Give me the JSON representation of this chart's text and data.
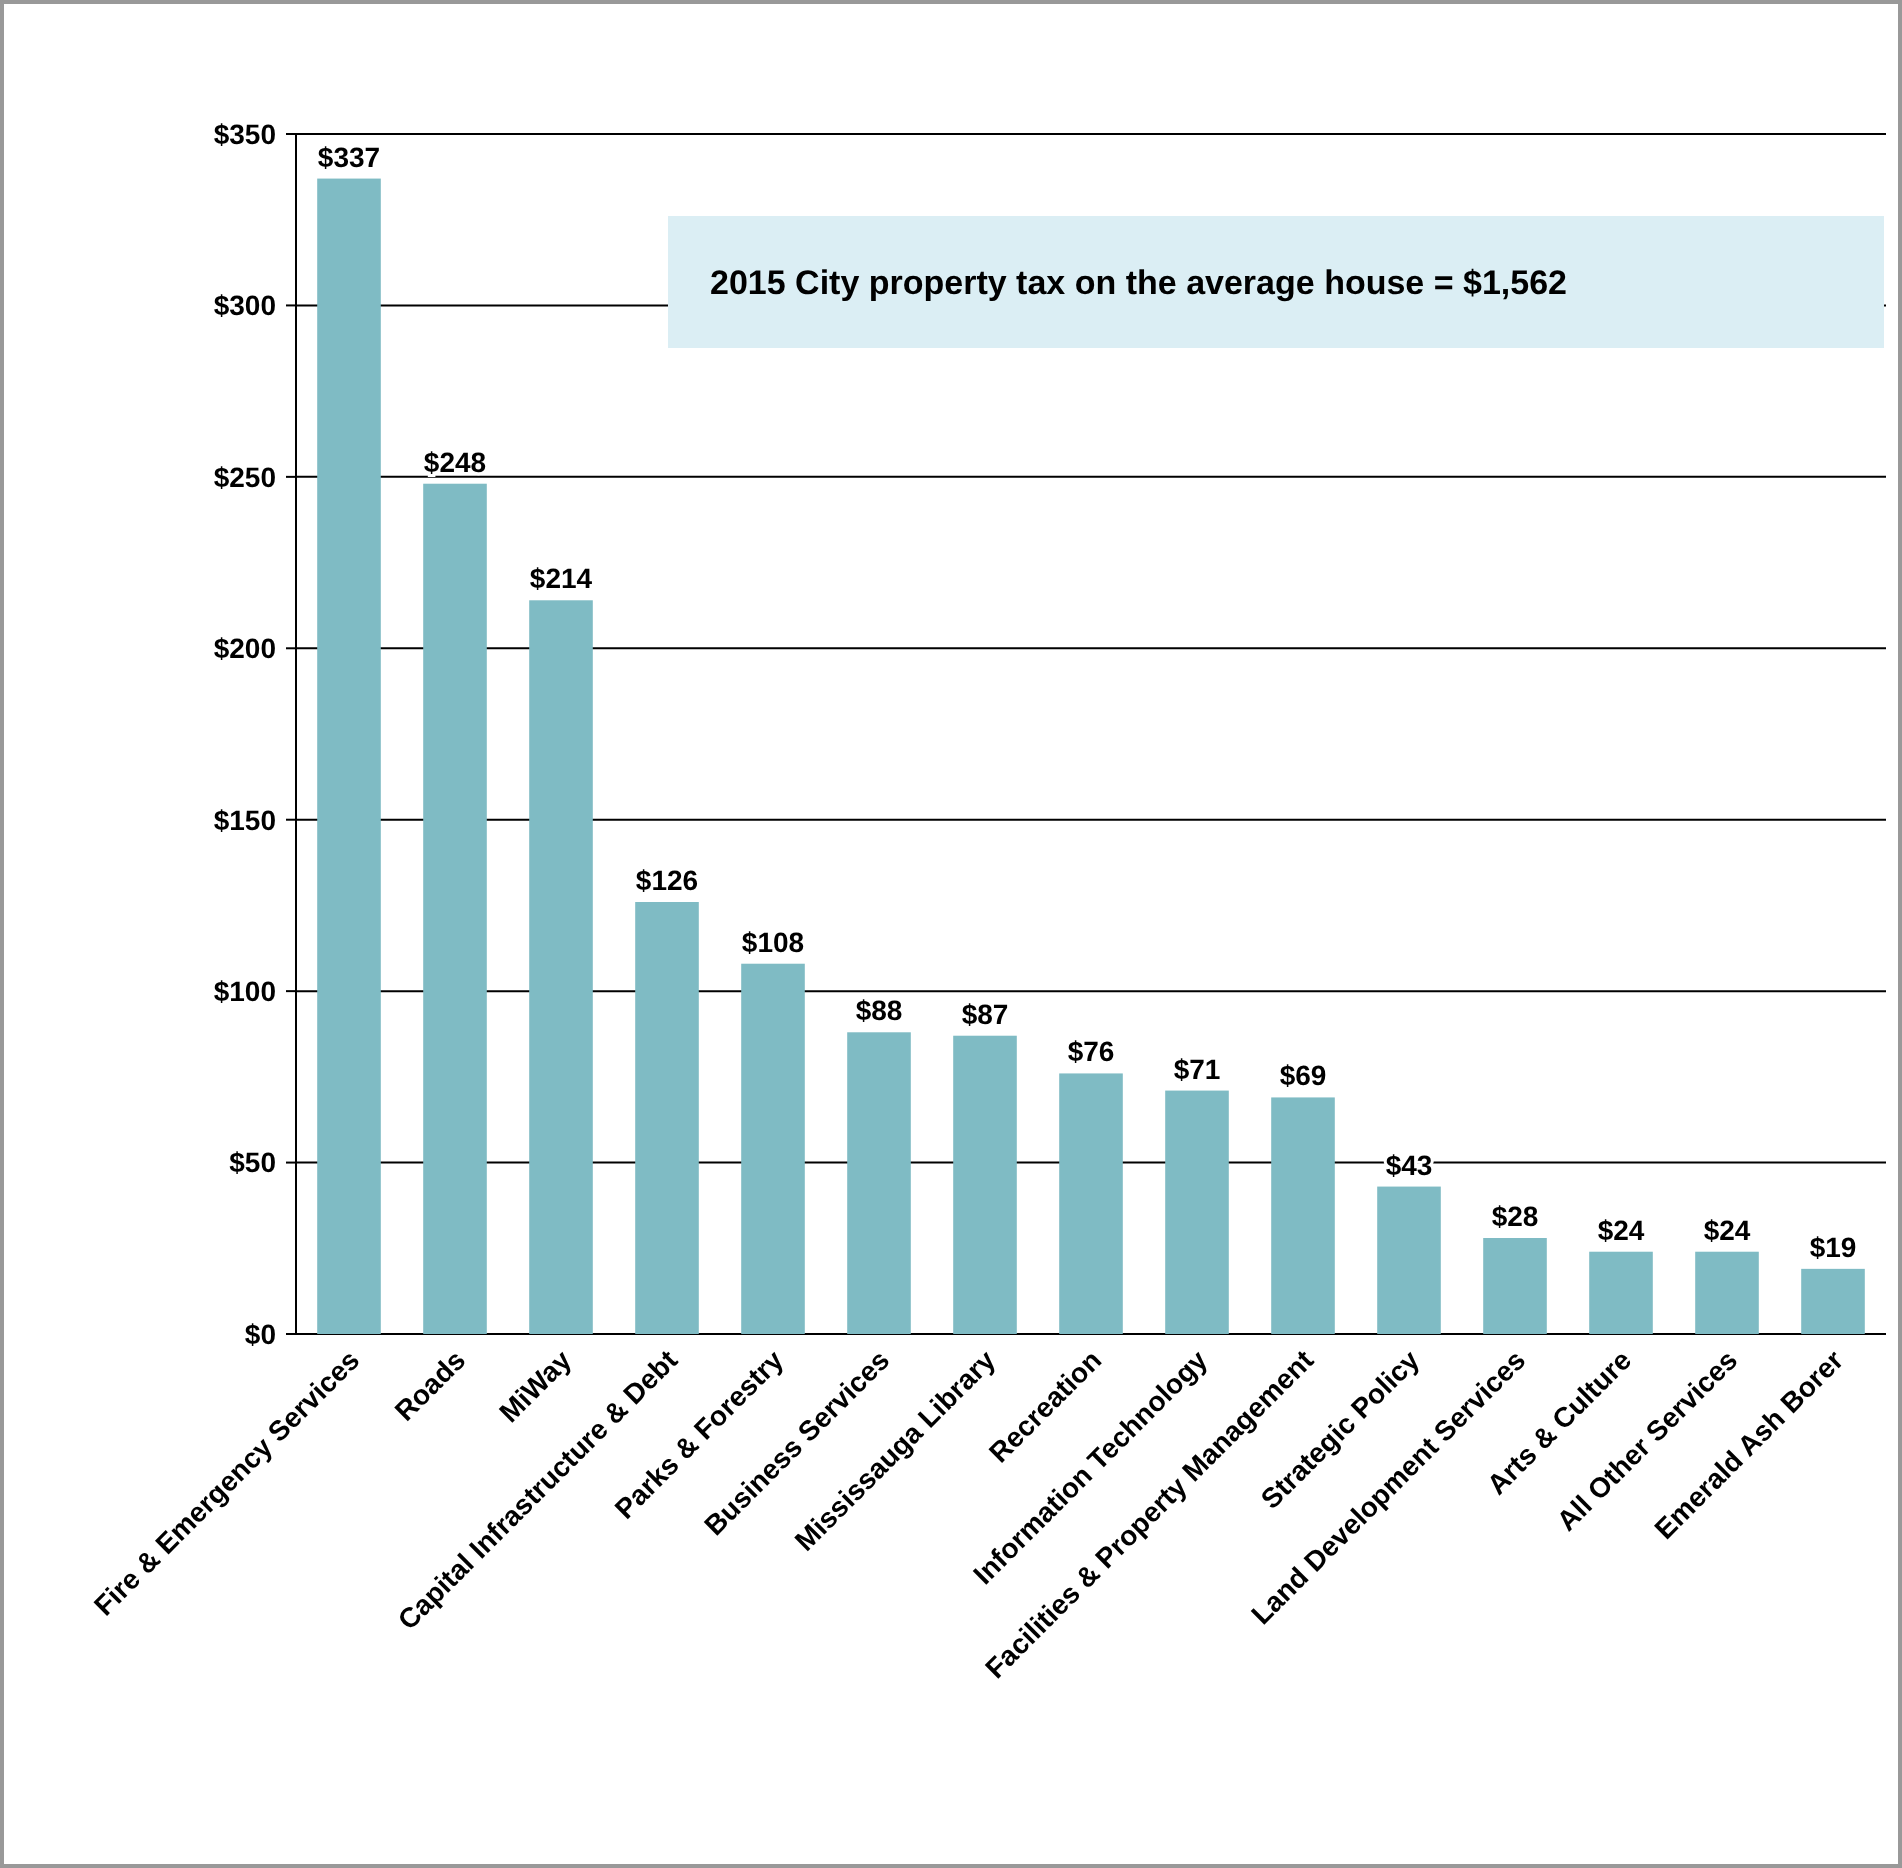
{
  "chart_data": {
    "type": "bar",
    "categories": [
      "Fire & Emergency Services",
      "Roads",
      "MiWay",
      "Capital Infrastructure & Debt",
      "Parks & Forestry",
      "Business Services",
      "Mississauga Library",
      "Recreation",
      "Information Technology",
      "Facilities & Property Management",
      "Strategic Policy",
      "Land Development Services",
      "Arts & Culture",
      "All Other Services",
      "Emerald Ash Borer"
    ],
    "values": [
      337,
      248,
      214,
      126,
      108,
      88,
      87,
      76,
      71,
      69,
      43,
      28,
      24,
      24,
      19
    ],
    "value_labels": [
      "$337",
      "$248",
      "$214",
      "$126",
      "$108",
      "$88",
      "$87",
      "$76",
      "$71",
      "$69",
      "$43",
      "$28",
      "$24",
      "$24",
      "$19"
    ],
    "color": "#7fbbc4",
    "ylim": [
      0,
      350
    ],
    "yticks": [
      {
        "value": 0,
        "label": "$0"
      },
      {
        "value": 50,
        "label": "$50"
      },
      {
        "value": 100,
        "label": "$100"
      },
      {
        "value": 150,
        "label": "$150"
      },
      {
        "value": 200,
        "label": "$200"
      },
      {
        "value": 250,
        "label": "$250"
      },
      {
        "value": 300,
        "label": "$300"
      },
      {
        "value": 350,
        "label": "$350"
      }
    ],
    "grid": "y",
    "annotations": [
      "2015 City property tax on the average house = $1,562"
    ]
  }
}
